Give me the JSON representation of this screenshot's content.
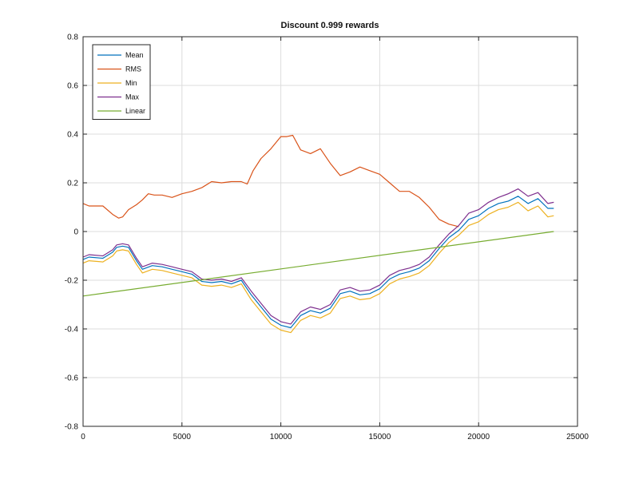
{
  "chart_data": {
    "type": "line",
    "title": "Discount 0.999 rewards",
    "xlabel": "",
    "ylabel": "",
    "xlim": [
      0,
      25000
    ],
    "ylim": [
      -0.8,
      0.8
    ],
    "xticks": [
      0,
      5000,
      10000,
      15000,
      20000,
      25000
    ],
    "yticks": [
      -0.8,
      -0.6,
      -0.4,
      -0.2,
      0,
      0.2,
      0.4,
      0.6,
      0.8
    ],
    "xtick_labels": [
      "0",
      "5000",
      "10000",
      "15000",
      "20000",
      "25000"
    ],
    "ytick_labels": [
      "-0.8",
      "-0.6",
      "-0.4",
      "-0.2",
      "0",
      "0.2",
      "0.4",
      "0.6",
      "0.8"
    ],
    "grid": true,
    "legend_position": "top-left",
    "series": [
      {
        "name": "Mean",
        "color": "#0072BD",
        "x": [
          0,
          300,
          1000,
          1500,
          1700,
          2000,
          2300,
          2700,
          3000,
          3500,
          4000,
          4500,
          5000,
          5500,
          6000,
          6500,
          7000,
          7500,
          8000,
          8500,
          9000,
          9500,
          10000,
          10500,
          11000,
          11500,
          12000,
          12500,
          13000,
          13500,
          14000,
          14500,
          15000,
          15500,
          16000,
          16500,
          17000,
          17500,
          18000,
          18500,
          19000,
          19500,
          20000,
          20500,
          21000,
          21500,
          22000,
          22500,
          23000,
          23500,
          23800
        ],
        "y": [
          -0.115,
          -0.105,
          -0.11,
          -0.085,
          -0.065,
          -0.06,
          -0.065,
          -0.12,
          -0.155,
          -0.14,
          -0.145,
          -0.155,
          -0.165,
          -0.175,
          -0.205,
          -0.21,
          -0.205,
          -0.215,
          -0.2,
          -0.26,
          -0.31,
          -0.36,
          -0.385,
          -0.395,
          -0.345,
          -0.325,
          -0.335,
          -0.315,
          -0.255,
          -0.245,
          -0.26,
          -0.255,
          -0.235,
          -0.195,
          -0.175,
          -0.165,
          -0.15,
          -0.12,
          -0.07,
          -0.025,
          0.005,
          0.05,
          0.065,
          0.095,
          0.115,
          0.125,
          0.145,
          0.115,
          0.135,
          0.095,
          0.095
        ]
      },
      {
        "name": "RMS",
        "color": "#D95319",
        "x": [
          0,
          300,
          1000,
          1500,
          1800,
          2000,
          2300,
          2700,
          3000,
          3300,
          3600,
          4000,
          4500,
          5000,
          5500,
          6000,
          6500,
          7000,
          7500,
          8000,
          8300,
          8600,
          9000,
          9500,
          10000,
          10300,
          10600,
          11000,
          11500,
          12000,
          12500,
          13000,
          13500,
          14000,
          14500,
          15000,
          15500,
          16000,
          16500,
          17000,
          17500,
          18000,
          18500,
          19000
        ],
        "y": [
          0.115,
          0.105,
          0.105,
          0.07,
          0.055,
          0.06,
          0.09,
          0.11,
          0.13,
          0.155,
          0.15,
          0.15,
          0.14,
          0.155,
          0.165,
          0.18,
          0.205,
          0.2,
          0.205,
          0.205,
          0.195,
          0.25,
          0.3,
          0.34,
          0.39,
          0.39,
          0.395,
          0.335,
          0.32,
          0.34,
          0.28,
          0.23,
          0.245,
          0.265,
          0.25,
          0.235,
          0.2,
          0.165,
          0.165,
          0.14,
          0.1,
          0.05,
          0.03,
          0.02
        ]
      },
      {
        "name": "Min",
        "color": "#EDB120",
        "x": [
          0,
          300,
          1000,
          1500,
          1700,
          2000,
          2300,
          2700,
          3000,
          3500,
          4000,
          4500,
          5000,
          5500,
          6000,
          6500,
          7000,
          7500,
          8000,
          8500,
          9000,
          9500,
          10000,
          10500,
          11000,
          11500,
          12000,
          12500,
          13000,
          13500,
          14000,
          14500,
          15000,
          15500,
          16000,
          16500,
          17000,
          17500,
          18000,
          18500,
          19000,
          19500,
          20000,
          20500,
          21000,
          21500,
          22000,
          22500,
          23000,
          23500,
          23800
        ],
        "y": [
          -0.13,
          -0.12,
          -0.125,
          -0.1,
          -0.08,
          -0.075,
          -0.08,
          -0.135,
          -0.17,
          -0.155,
          -0.16,
          -0.17,
          -0.18,
          -0.19,
          -0.22,
          -0.225,
          -0.22,
          -0.23,
          -0.215,
          -0.28,
          -0.33,
          -0.38,
          -0.405,
          -0.415,
          -0.365,
          -0.345,
          -0.355,
          -0.335,
          -0.275,
          -0.265,
          -0.28,
          -0.275,
          -0.255,
          -0.215,
          -0.195,
          -0.185,
          -0.17,
          -0.14,
          -0.09,
          -0.045,
          -0.015,
          0.025,
          0.04,
          0.07,
          0.09,
          0.1,
          0.12,
          0.085,
          0.105,
          0.06,
          0.065
        ]
      },
      {
        "name": "Max",
        "color": "#7E2F8E",
        "x": [
          0,
          300,
          1000,
          1500,
          1700,
          2000,
          2300,
          2700,
          3000,
          3500,
          4000,
          4500,
          5000,
          5500,
          6000,
          6500,
          7000,
          7500,
          8000,
          8500,
          9000,
          9500,
          10000,
          10500,
          11000,
          11500,
          12000,
          12500,
          13000,
          13500,
          14000,
          14500,
          15000,
          15500,
          16000,
          16500,
          17000,
          17500,
          18000,
          18500,
          19000,
          19500,
          20000,
          20500,
          21000,
          21500,
          22000,
          22500,
          23000,
          23500,
          23800
        ],
        "y": [
          -0.105,
          -0.095,
          -0.1,
          -0.075,
          -0.055,
          -0.05,
          -0.055,
          -0.11,
          -0.145,
          -0.13,
          -0.135,
          -0.145,
          -0.155,
          -0.165,
          -0.195,
          -0.2,
          -0.195,
          -0.205,
          -0.19,
          -0.245,
          -0.295,
          -0.345,
          -0.37,
          -0.38,
          -0.33,
          -0.31,
          -0.32,
          -0.3,
          -0.24,
          -0.23,
          -0.245,
          -0.24,
          -0.22,
          -0.18,
          -0.16,
          -0.15,
          -0.135,
          -0.105,
          -0.055,
          -0.01,
          0.025,
          0.075,
          0.09,
          0.12,
          0.14,
          0.155,
          0.175,
          0.145,
          0.16,
          0.115,
          0.12
        ]
      },
      {
        "name": "Linear",
        "color": "#77AC30",
        "x": [
          0,
          23800
        ],
        "y": [
          -0.265,
          0.0
        ]
      }
    ]
  }
}
